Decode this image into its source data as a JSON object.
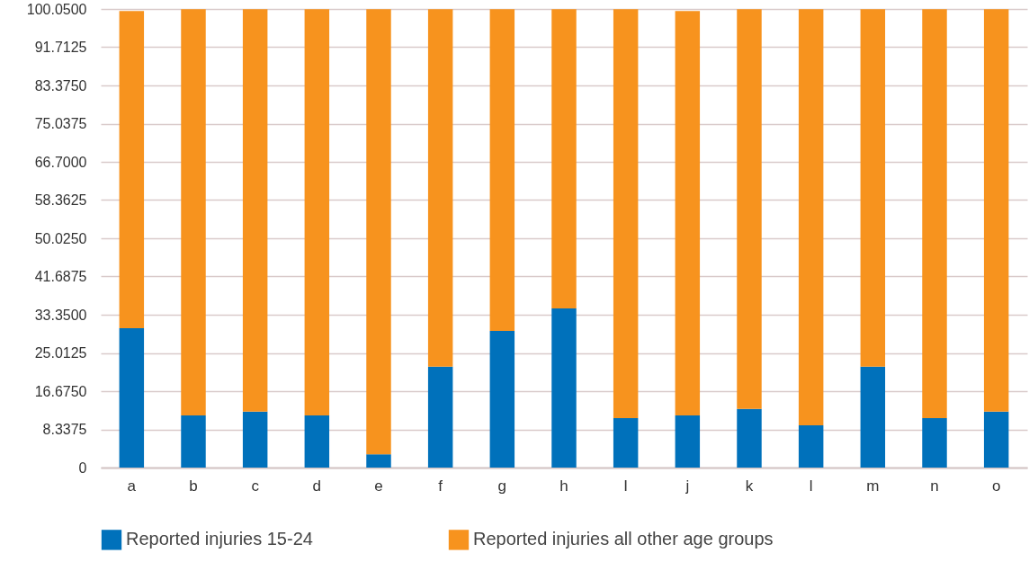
{
  "chart_data": {
    "type": "bar",
    "stacked": true,
    "categories": [
      "a",
      "b",
      "c",
      "d",
      "e",
      "f",
      "g",
      "h",
      "I",
      "j",
      "k",
      "l",
      "m",
      "n",
      "o"
    ],
    "series": [
      {
        "name": "Reported injuries 15-24",
        "color": "#0071bb",
        "values": [
          30.4,
          11.4,
          12.2,
          11.4,
          2.9,
          22.0,
          29.8,
          34.7,
          10.8,
          11.4,
          12.8,
          9.2,
          22.0,
          10.8,
          12.2
        ]
      },
      {
        "name": "Reported injuries all other age groups",
        "color": "#f7931e",
        "values": [
          69.2,
          88.6,
          87.8,
          88.6,
          97.1,
          78.0,
          70.2,
          65.3,
          89.2,
          88.2,
          87.2,
          90.8,
          78.0,
          89.2,
          87.8
        ]
      }
    ],
    "ylim": [
      0,
      100.05
    ],
    "yticks": [
      0,
      {
        "value": 8.3375,
        "label": "8.3375"
      },
      {
        "value": 16.675,
        "label": "16.6750"
      },
      {
        "value": 25.0125,
        "label": "25.0125"
      },
      {
        "value": 33.35,
        "label": "33.3500"
      },
      {
        "value": 41.6875,
        "label": "41.6875"
      },
      {
        "value": 50.025,
        "label": "50.0250"
      },
      {
        "value": 58.3625,
        "label": "58.3625"
      },
      {
        "value": 66.7,
        "label": "66.7000"
      },
      {
        "value": 75.0375,
        "label": "75.0375"
      },
      {
        "value": 83.375,
        "label": "83.3750"
      },
      {
        "value": 91.7125,
        "label": "91.7125"
      },
      {
        "value": 100.05,
        "label": "100.0500"
      }
    ],
    "grid": "y",
    "legend": "bottom"
  }
}
